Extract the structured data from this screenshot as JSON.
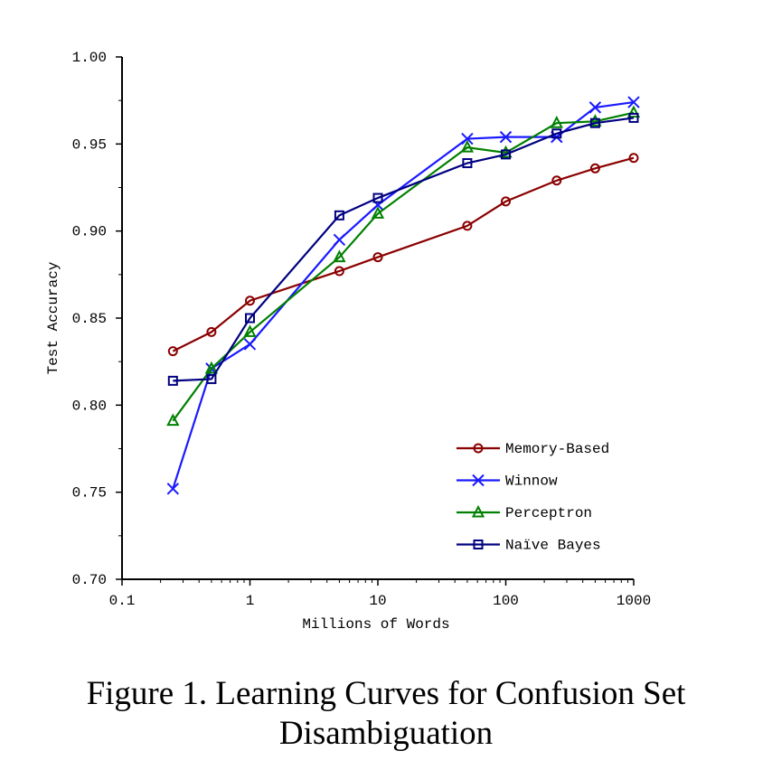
{
  "caption": {
    "line1": "Figure 1. Learning Curves for Confusion Set",
    "line2": "Disambiguation"
  },
  "chart_data": {
    "type": "line",
    "title": "",
    "xlabel": "Millions of Words",
    "ylabel": "Test Accuracy",
    "xscale": "log",
    "xlim": [
      0.1,
      1000
    ],
    "ylim": [
      0.7,
      1.0
    ],
    "xticks": [
      "0.1",
      "1",
      "10",
      "100",
      "1000"
    ],
    "yticks": [
      "0.70",
      "0.75",
      "0.80",
      "0.85",
      "0.90",
      "0.95",
      "1.00"
    ],
    "grid": false,
    "legend_position": "bottom-right",
    "x": [
      0.25,
      0.5,
      1,
      5,
      10,
      50,
      100,
      250,
      500,
      1000
    ],
    "series": [
      {
        "name": "Memory-Based",
        "color": "#8b0000",
        "marker": "circle",
        "values": [
          0.831,
          0.842,
          0.86,
          0.877,
          0.885,
          0.903,
          0.917,
          0.929,
          0.936,
          0.942
        ]
      },
      {
        "name": "Winnow",
        "color": "#1a1aff",
        "marker": "x",
        "values": [
          0.752,
          0.821,
          0.835,
          0.895,
          0.915,
          0.953,
          0.954,
          0.954,
          0.971,
          0.974
        ]
      },
      {
        "name": "Perceptron",
        "color": "#008000",
        "marker": "triangle",
        "values": [
          0.791,
          0.821,
          0.842,
          0.885,
          0.91,
          0.948,
          0.945,
          0.962,
          0.963,
          0.968
        ]
      },
      {
        "name": "Naïve Bayes",
        "color": "#000080",
        "marker": "square",
        "values": [
          0.814,
          0.815,
          0.85,
          0.909,
          0.919,
          0.939,
          0.944,
          0.956,
          0.962,
          0.965
        ]
      }
    ]
  }
}
